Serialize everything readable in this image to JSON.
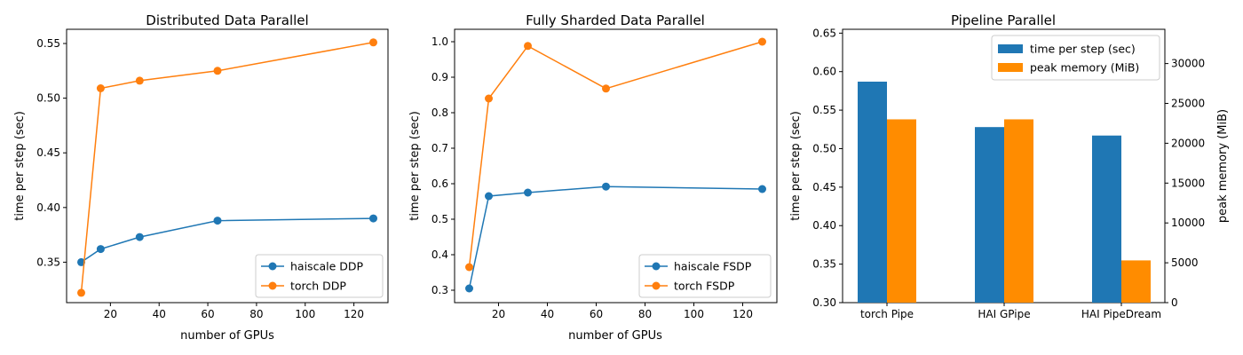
{
  "colors": {
    "blue": "#1f77b4",
    "orange": "#ff7f0e",
    "bar_orange": "#ff8c00"
  },
  "chart_data": [
    {
      "type": "line",
      "title": "Distributed Data Parallel",
      "xlabel": "number of GPUs",
      "ylabel": "time per step (sec)",
      "xlim": [
        2,
        134
      ],
      "ylim": [
        0.313,
        0.563
      ],
      "xticks": [
        20,
        40,
        60,
        80,
        100,
        120
      ],
      "yticks": [
        0.35,
        0.4,
        0.45,
        0.5,
        0.55
      ],
      "ytick_labels": [
        "0.35",
        "0.40",
        "0.45",
        "0.50",
        "0.55"
      ],
      "legend_position": "lower right",
      "x": [
        8,
        16,
        32,
        64,
        128
      ],
      "series": [
        {
          "name": "haiscale DDP",
          "color": "#1f77b4",
          "values": [
            0.35,
            0.362,
            0.373,
            0.388,
            0.39
          ]
        },
        {
          "name": "torch DDP",
          "color": "#ff7f0e",
          "values": [
            0.322,
            0.509,
            0.516,
            0.525,
            0.551
          ]
        }
      ]
    },
    {
      "type": "line",
      "title": "Fully Sharded Data Parallel",
      "xlabel": "number of GPUs",
      "ylabel": "time per step (sec)",
      "xlim": [
        2,
        134
      ],
      "ylim": [
        0.265,
        1.035
      ],
      "xticks": [
        20,
        40,
        60,
        80,
        100,
        120
      ],
      "yticks": [
        0.3,
        0.4,
        0.5,
        0.6,
        0.7,
        0.8,
        0.9,
        1.0
      ],
      "ytick_labels": [
        "0.3",
        "0.4",
        "0.5",
        "0.6",
        "0.7",
        "0.8",
        "0.9",
        "1.0"
      ],
      "legend_position": "lower right",
      "x": [
        8,
        16,
        32,
        64,
        128
      ],
      "series": [
        {
          "name": "haiscale FSDP",
          "color": "#1f77b4",
          "values": [
            0.305,
            0.565,
            0.575,
            0.592,
            0.585
          ]
        },
        {
          "name": "torch FSDP",
          "color": "#ff7f0e",
          "values": [
            0.365,
            0.84,
            0.988,
            0.868,
            1.0
          ]
        }
      ]
    },
    {
      "type": "bar",
      "title": "Pipeline Parallel",
      "ylabel": "time per step (sec)",
      "ylabel_right": "peak memory (MiB)",
      "categories": [
        "torch Pipe",
        "HAI GPipe",
        "HAI PipeDream"
      ],
      "ylim": [
        0.3,
        0.655
      ],
      "ylim_right": [
        0,
        34300
      ],
      "yticks": [
        0.3,
        0.35,
        0.4,
        0.45,
        0.5,
        0.55,
        0.6,
        0.65
      ],
      "ytick_labels": [
        "0.30",
        "0.35",
        "0.40",
        "0.45",
        "0.50",
        "0.55",
        "0.60",
        "0.65"
      ],
      "yticks_right": [
        0,
        5000,
        10000,
        15000,
        20000,
        25000,
        30000
      ],
      "ytick_labels_right": [
        "0",
        "5000",
        "10000",
        "15000",
        "20000",
        "25000",
        "30000"
      ],
      "legend_position": "upper right",
      "series": [
        {
          "name": "time per step (sec)",
          "color": "#1f77b4",
          "axis": "left",
          "values": [
            0.587,
            0.528,
            0.517
          ]
        },
        {
          "name": "peak memory (MiB)",
          "color": "#ff8c00",
          "axis": "right",
          "values": [
            23000,
            23000,
            5300
          ]
        }
      ]
    }
  ]
}
